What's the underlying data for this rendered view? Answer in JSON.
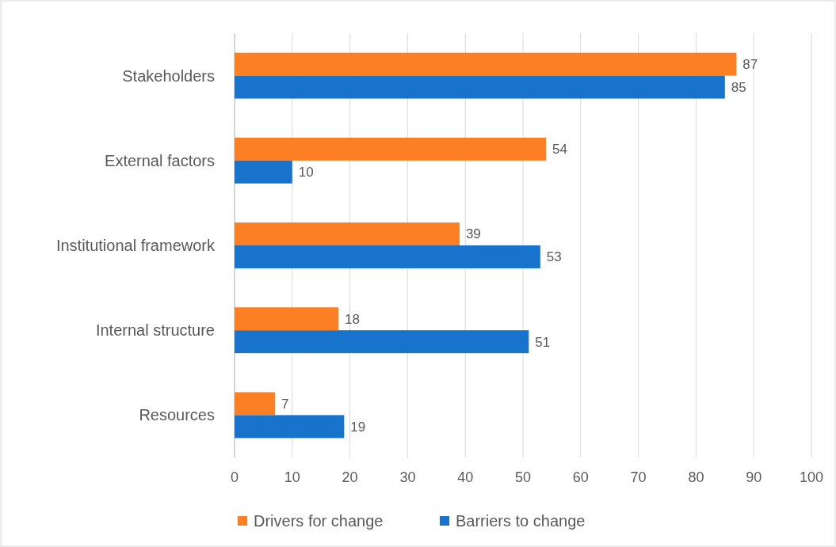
{
  "chart_data": {
    "type": "bar",
    "orientation": "horizontal",
    "categories": [
      "Stakeholders",
      "External factors",
      "Institutional framework",
      "Internal structure",
      "Resources"
    ],
    "series": [
      {
        "name": "Drivers for change",
        "color": "#fd7f24",
        "values": [
          87,
          54,
          39,
          18,
          7
        ]
      },
      {
        "name": "Barriers to change",
        "color": "#1873cc",
        "values": [
          85,
          10,
          53,
          51,
          19
        ]
      }
    ],
    "xlim": [
      0,
      100
    ],
    "xticks": [
      0,
      10,
      20,
      30,
      40,
      50,
      60,
      70,
      80,
      90,
      100
    ],
    "grid": "x",
    "legend": "bottom",
    "data_labels": true
  }
}
